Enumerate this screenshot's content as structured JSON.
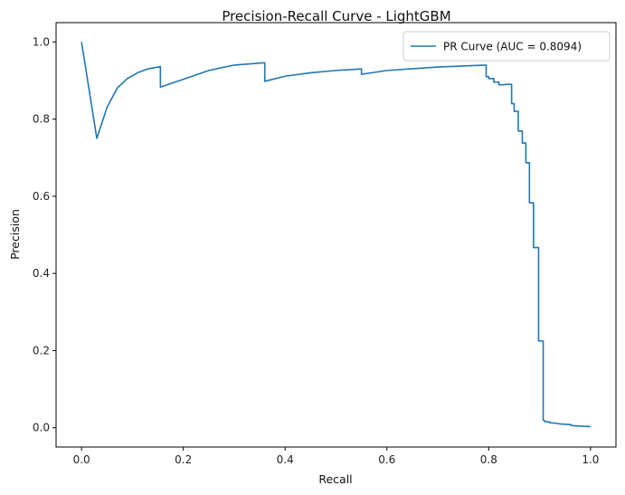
{
  "chart_data": {
    "type": "line",
    "title": "Precision-Recall Curve - LightGBM",
    "xlabel": "Recall",
    "ylabel": "Precision",
    "xlim": [
      -0.05,
      1.05
    ],
    "ylim": [
      -0.05,
      1.05
    ],
    "x_ticks": [
      0.0,
      0.2,
      0.4,
      0.6,
      0.8,
      1.0
    ],
    "x_tick_labels": [
      "0.0",
      "0.2",
      "0.4",
      "0.6",
      "0.8",
      "1.0"
    ],
    "y_ticks": [
      0.0,
      0.2,
      0.4,
      0.6,
      0.8,
      1.0
    ],
    "y_tick_labels": [
      "0.0",
      "0.2",
      "0.4",
      "0.6",
      "0.8",
      "1.0"
    ],
    "grid": false,
    "legend": {
      "position": "upper-right"
    },
    "series": [
      {
        "name": "PR Curve (AUC = 0.8094)",
        "color": "#1f77b4",
        "points": [
          [
            1.0,
            0.003
          ],
          [
            0.97,
            0.005
          ],
          [
            0.962,
            0.006
          ],
          [
            0.962,
            0.008
          ],
          [
            0.95,
            0.009
          ],
          [
            0.94,
            0.01
          ],
          [
            0.935,
            0.011
          ],
          [
            0.93,
            0.012
          ],
          [
            0.92,
            0.013
          ],
          [
            0.92,
            0.015
          ],
          [
            0.91,
            0.016
          ],
          [
            0.91,
            0.018
          ],
          [
            0.907,
            0.02
          ],
          [
            0.907,
            0.225
          ],
          [
            0.898,
            0.225
          ],
          [
            0.898,
            0.467
          ],
          [
            0.888,
            0.467
          ],
          [
            0.888,
            0.583
          ],
          [
            0.88,
            0.583
          ],
          [
            0.88,
            0.687
          ],
          [
            0.873,
            0.687
          ],
          [
            0.873,
            0.738
          ],
          [
            0.866,
            0.738
          ],
          [
            0.866,
            0.769
          ],
          [
            0.858,
            0.769
          ],
          [
            0.858,
            0.82
          ],
          [
            0.85,
            0.82
          ],
          [
            0.85,
            0.84
          ],
          [
            0.845,
            0.84
          ],
          [
            0.845,
            0.89
          ],
          [
            0.835,
            0.89
          ],
          [
            0.83,
            0.889
          ],
          [
            0.82,
            0.889
          ],
          [
            0.82,
            0.896
          ],
          [
            0.81,
            0.896
          ],
          [
            0.81,
            0.905
          ],
          [
            0.8,
            0.905
          ],
          [
            0.8,
            0.91
          ],
          [
            0.795,
            0.91
          ],
          [
            0.795,
            0.94
          ],
          [
            0.7,
            0.935
          ],
          [
            0.6,
            0.926
          ],
          [
            0.55,
            0.916
          ],
          [
            0.55,
            0.93
          ],
          [
            0.5,
            0.926
          ],
          [
            0.45,
            0.92
          ],
          [
            0.4,
            0.911
          ],
          [
            0.36,
            0.898
          ],
          [
            0.36,
            0.946
          ],
          [
            0.3,
            0.94
          ],
          [
            0.25,
            0.926
          ],
          [
            0.2,
            0.903
          ],
          [
            0.155,
            0.883
          ],
          [
            0.155,
            0.936
          ],
          [
            0.13,
            0.93
          ],
          [
            0.11,
            0.92
          ],
          [
            0.09,
            0.905
          ],
          [
            0.07,
            0.88
          ],
          [
            0.05,
            0.83
          ],
          [
            0.04,
            0.79
          ],
          [
            0.03,
            0.75
          ],
          [
            0.0,
            1.0
          ]
        ]
      }
    ]
  }
}
